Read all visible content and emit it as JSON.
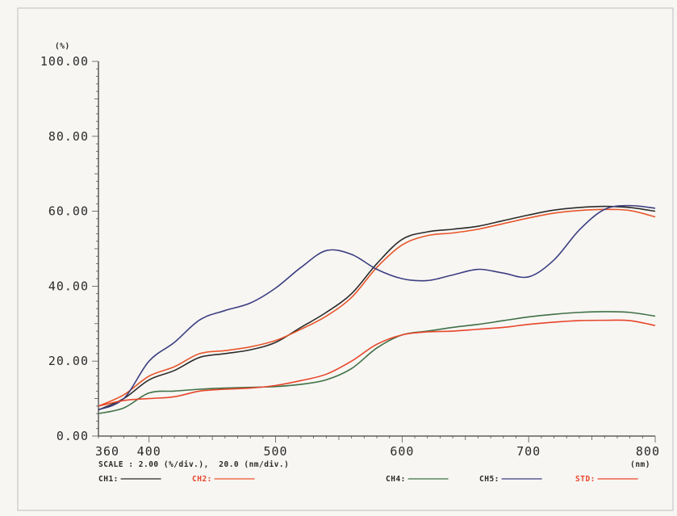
{
  "chart_data": {
    "type": "line",
    "y_unit": "(%)",
    "x_unit": "(nm)",
    "xlim": [
      360,
      800
    ],
    "ylim": [
      0,
      100
    ],
    "x_ticks": [
      {
        "value": 360,
        "label": "360"
      },
      {
        "value": 400,
        "label": "400"
      },
      {
        "value": 500,
        "label": "500"
      },
      {
        "value": 600,
        "label": "600"
      },
      {
        "value": 700,
        "label": "700"
      },
      {
        "value": 800,
        "label": "800"
      }
    ],
    "y_ticks": [
      {
        "value": 0,
        "label": "0.00"
      },
      {
        "value": 20,
        "label": "20.00"
      },
      {
        "value": 40,
        "label": "40.00"
      },
      {
        "value": 60,
        "label": "60.00"
      },
      {
        "value": 80,
        "label": "80.00"
      },
      {
        "value": 100,
        "label": "100.00"
      }
    ],
    "scale_text": "SCALE : 2.00 (%/div.),  20.0 (nm/div.)",
    "grid": false,
    "legend_position": "bottom",
    "series": [
      {
        "name": "CH1:",
        "color": "#2b2b2b",
        "x": [
          360,
          380,
          400,
          420,
          440,
          460,
          480,
          500,
          520,
          540,
          560,
          580,
          600,
          620,
          640,
          660,
          680,
          700,
          720,
          740,
          760,
          780,
          800
        ],
        "y": [
          7,
          10,
          15,
          17.5,
          21,
          22,
          23,
          25,
          29,
          33,
          38,
          46,
          52.5,
          54.5,
          55.2,
          56,
          57.5,
          59,
          60.3,
          61,
          61.3,
          61,
          60
        ]
      },
      {
        "name": "CH2:",
        "color": "#e8552a",
        "x": [
          360,
          380,
          400,
          420,
          440,
          460,
          480,
          500,
          520,
          540,
          560,
          580,
          600,
          620,
          640,
          660,
          680,
          700,
          720,
          740,
          760,
          780,
          800
        ],
        "y": [
          8,
          11,
          16,
          18.5,
          22,
          22.8,
          23.8,
          25.5,
          28.5,
          32,
          37,
          45,
          51,
          53.5,
          54.2,
          55.2,
          56.7,
          58.2,
          59.5,
          60.2,
          60.5,
          60.2,
          58.5
        ]
      },
      {
        "name": "CH4:",
        "color": "#3f7045",
        "x": [
          360,
          380,
          400,
          420,
          440,
          460,
          480,
          500,
          520,
          540,
          560,
          580,
          600,
          620,
          640,
          660,
          680,
          700,
          720,
          740,
          760,
          780,
          800
        ],
        "y": [
          6,
          7.5,
          11.5,
          12,
          12.5,
          12.8,
          13,
          13.2,
          13.8,
          15,
          18,
          23.5,
          27,
          28,
          29,
          29.8,
          30.8,
          31.8,
          32.5,
          33,
          33.2,
          33,
          32
        ]
      },
      {
        "name": "CH5:",
        "color": "#3c3e80",
        "x": [
          360,
          380,
          400,
          420,
          440,
          460,
          480,
          500,
          520,
          540,
          560,
          580,
          600,
          620,
          640,
          660,
          680,
          700,
          720,
          740,
          760,
          780,
          800
        ],
        "y": [
          7,
          10,
          20,
          25,
          31,
          33.5,
          35.5,
          39.5,
          45,
          49.5,
          48.5,
          44.5,
          42,
          41.5,
          43,
          44.5,
          43.5,
          42.5,
          47,
          55,
          60.5,
          61.5,
          60.8
        ]
      },
      {
        "name": "STD:",
        "color": "#e8452a",
        "x": [
          360,
          380,
          400,
          420,
          440,
          460,
          480,
          500,
          520,
          540,
          560,
          580,
          600,
          620,
          640,
          660,
          680,
          700,
          720,
          740,
          760,
          780,
          800
        ],
        "y": [
          8,
          9.5,
          10,
          10.5,
          12,
          12.5,
          12.8,
          13.5,
          14.8,
          16.5,
          20,
          24.5,
          27,
          27.8,
          28,
          28.5,
          29,
          29.8,
          30.4,
          30.8,
          30.9,
          30.8,
          29.5
        ]
      }
    ]
  }
}
